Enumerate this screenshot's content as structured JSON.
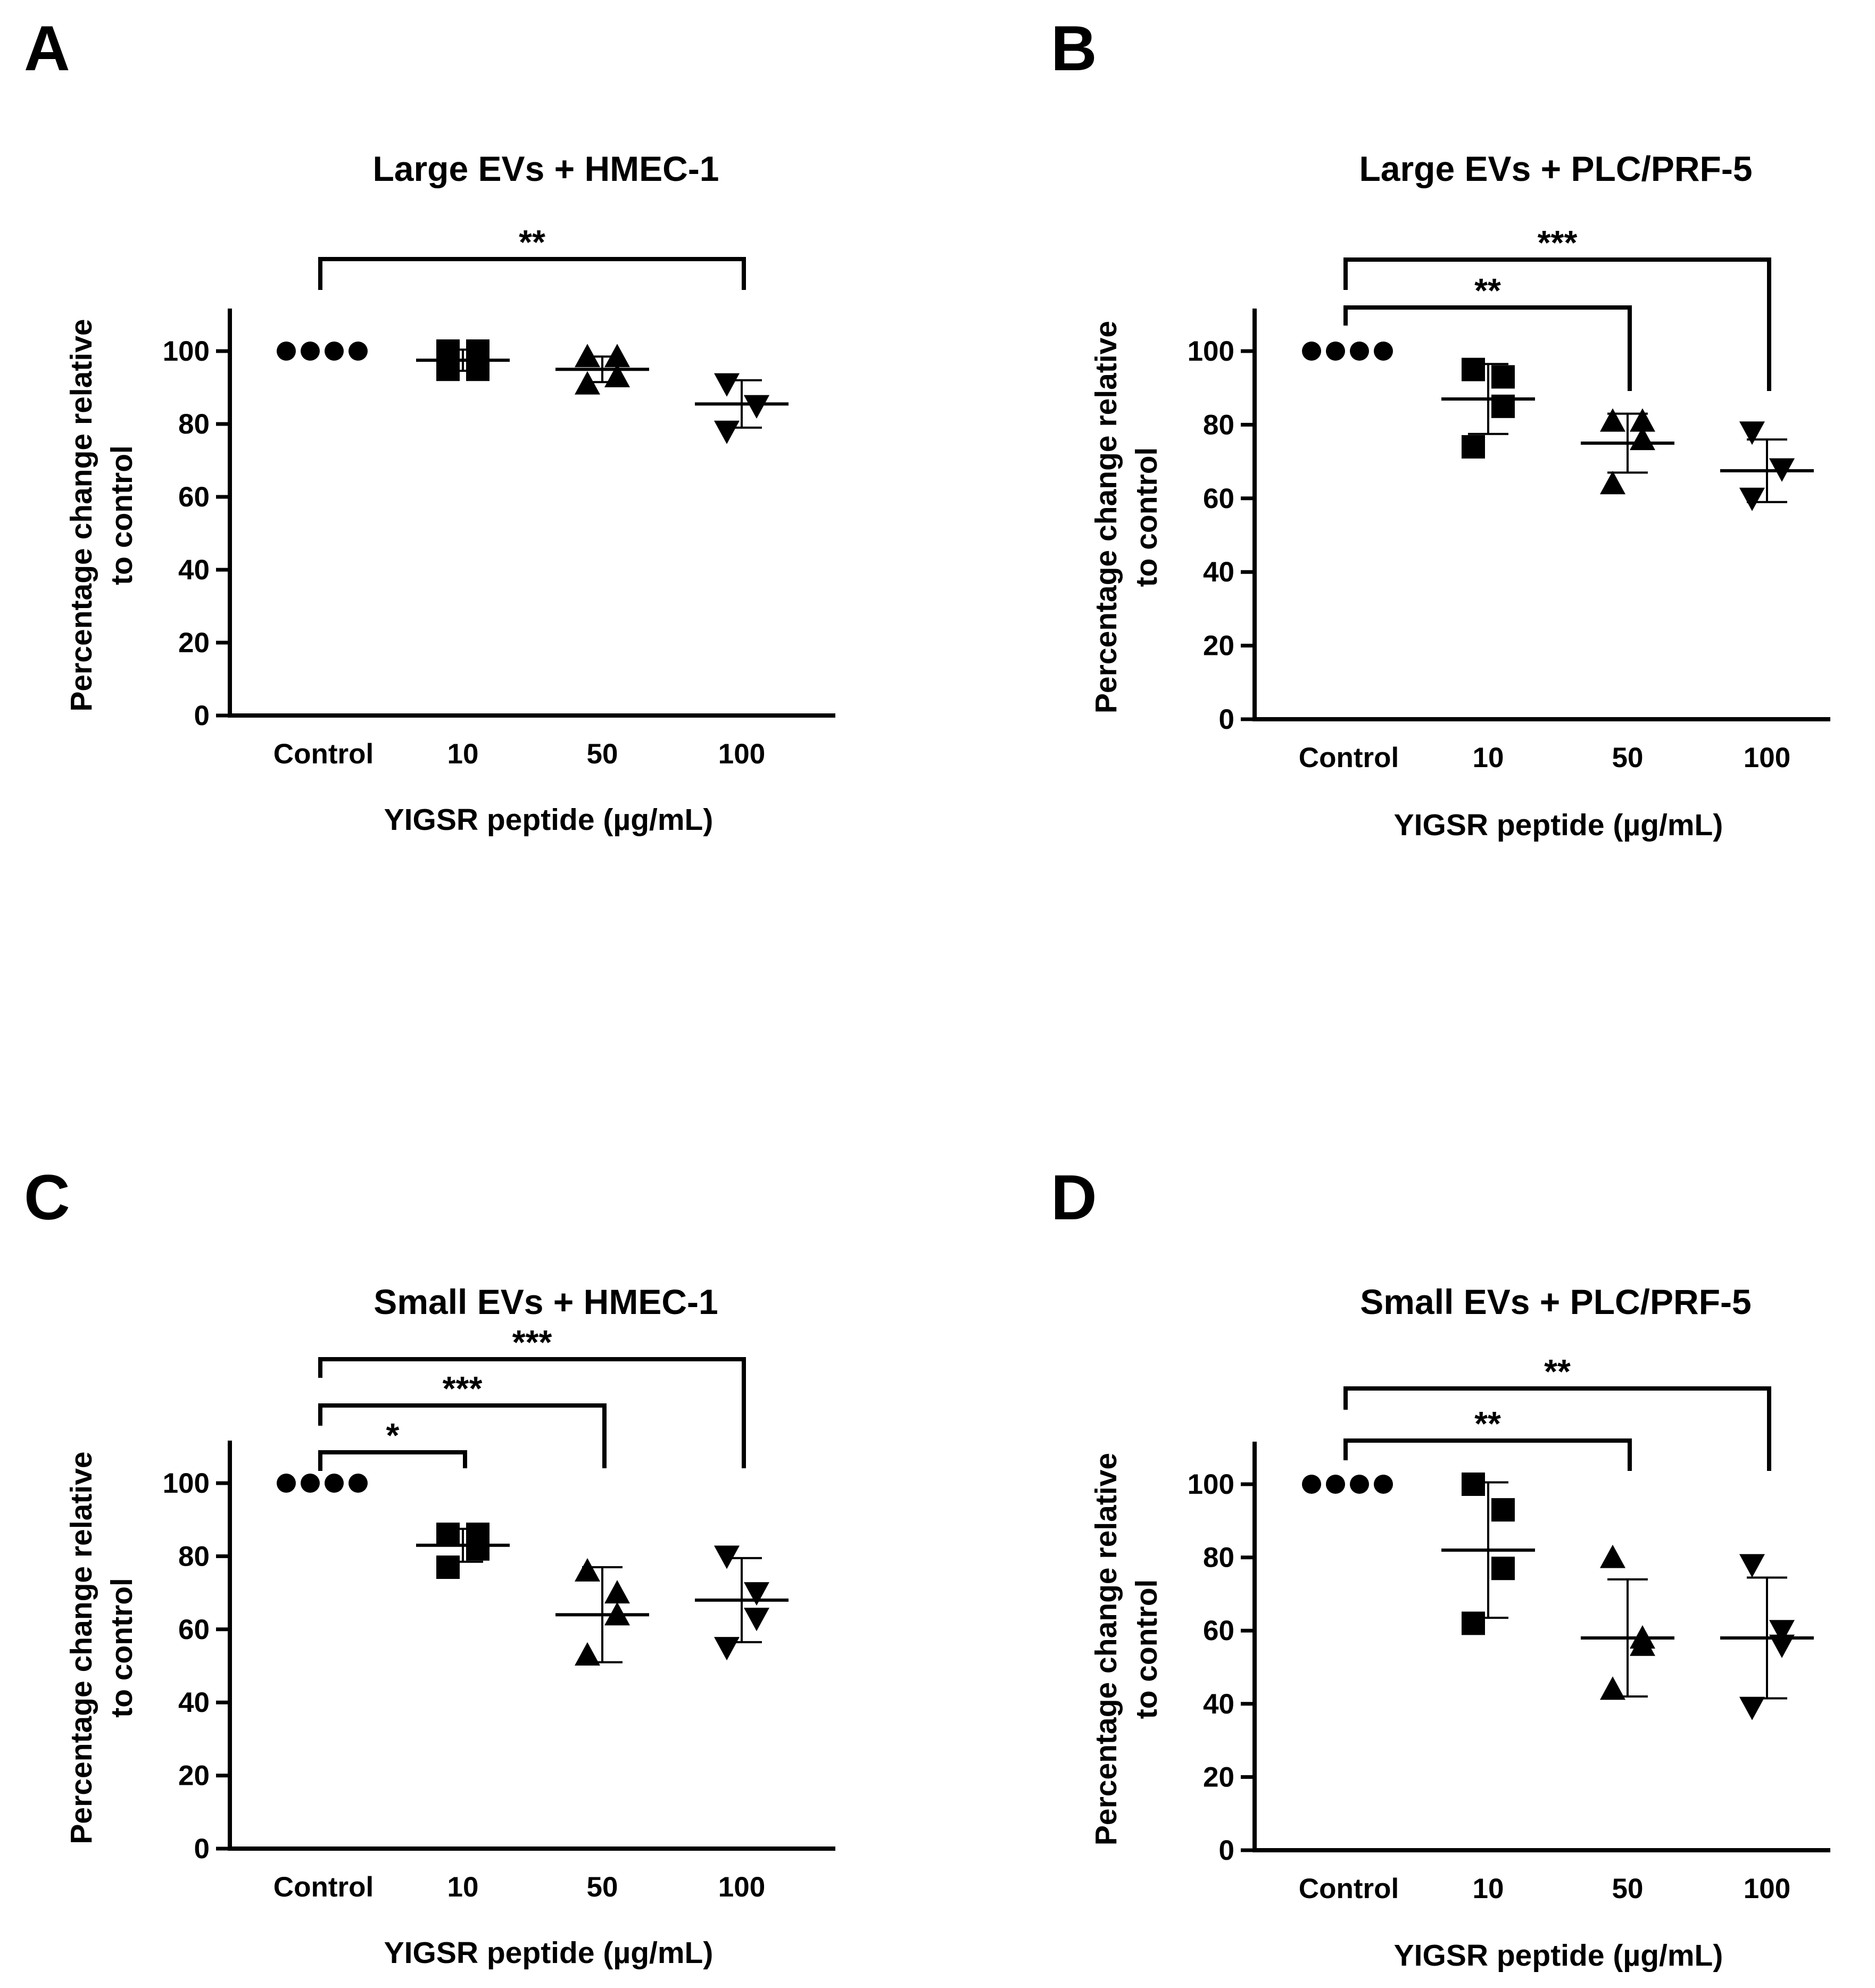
{
  "figure": {
    "panel_letters": [
      "A",
      "B",
      "C",
      "D"
    ]
  },
  "chart_data": [
    {
      "panel": "A",
      "type": "scatter",
      "title": "Large EVs + HMEC-1",
      "xlabel": "YIGSR peptide (µg/mL)",
      "ylabel_lines": [
        "Percentage change relative",
        "to control"
      ],
      "categories": [
        "Control",
        "10",
        "50",
        "100"
      ],
      "ylim": [
        0,
        110
      ],
      "yticks": [
        0,
        20,
        40,
        60,
        80,
        100
      ],
      "markers": [
        "circle",
        "square",
        "triangle-up",
        "triangle-down"
      ],
      "groups": [
        {
          "name": "Control",
          "points": [
            100,
            100,
            100,
            100
          ],
          "mean": 100,
          "sd": 0
        },
        {
          "name": "10",
          "points": [
            100,
            100,
            95,
            95
          ],
          "mean": 97.5,
          "sd": 2.9
        },
        {
          "name": "50",
          "points": [
            98.5,
            98.5,
            93,
            91
          ],
          "mean": 95,
          "sd": 3.5
        },
        {
          "name": "100",
          "points": [
            91,
            85,
            85,
            78
          ],
          "mean": 85.5,
          "sd": 6.5
        }
      ],
      "comparisons": [
        {
          "from": "Control",
          "to": "100",
          "label": "**"
        }
      ]
    },
    {
      "panel": "B",
      "type": "scatter",
      "title": "Large EVs + PLC/PRF-5",
      "xlabel": "YIGSR peptide (µg/mL)",
      "ylabel_lines": [
        "Percentage change relative",
        "to control"
      ],
      "categories": [
        "Control",
        "10",
        "50",
        "100"
      ],
      "ylim": [
        0,
        110
      ],
      "yticks": [
        0,
        20,
        40,
        60,
        80,
        100
      ],
      "markers": [
        "circle",
        "square",
        "triangle-up",
        "triangle-down"
      ],
      "groups": [
        {
          "name": "Control",
          "points": [
            100,
            100,
            100,
            100
          ],
          "mean": 100,
          "sd": 0
        },
        {
          "name": "10",
          "points": [
            95,
            93,
            85,
            74
          ],
          "mean": 87,
          "sd": 9.5
        },
        {
          "name": "50",
          "points": [
            81,
            81,
            76,
            64
          ],
          "mean": 75,
          "sd": 8
        },
        {
          "name": "100",
          "points": [
            78,
            68,
            68,
            60
          ],
          "mean": 67.5,
          "sd": 8.5
        }
      ],
      "comparisons": [
        {
          "from": "Control",
          "to": "50",
          "label": "**"
        },
        {
          "from": "Control",
          "to": "100",
          "label": "***"
        }
      ]
    },
    {
      "panel": "C",
      "type": "scatter",
      "title": "Small EVs + HMEC-1",
      "xlabel": "YIGSR peptide (µg/mL)",
      "ylabel_lines": [
        "Percentage change relative",
        "to control"
      ],
      "categories": [
        "Control",
        "10",
        "50",
        "100"
      ],
      "ylim": [
        0,
        110
      ],
      "yticks": [
        0,
        20,
        40,
        60,
        80,
        100
      ],
      "markers": [
        "circle",
        "square",
        "triangle-up",
        "triangle-down"
      ],
      "groups": [
        {
          "name": "Control",
          "points": [
            100,
            100,
            100,
            100
          ],
          "mean": 100,
          "sd": 0
        },
        {
          "name": "10",
          "points": [
            86,
            86,
            82,
            77
          ],
          "mean": 83,
          "sd": 4.5
        },
        {
          "name": "50",
          "points": [
            76,
            70,
            64,
            53
          ],
          "mean": 64,
          "sd": 13
        },
        {
          "name": "100",
          "points": [
            80,
            70,
            63,
            55
          ],
          "mean": 68,
          "sd": 11.5
        }
      ],
      "comparisons": [
        {
          "from": "Control",
          "to": "10",
          "label": "*"
        },
        {
          "from": "Control",
          "to": "50",
          "label": "***"
        },
        {
          "from": "Control",
          "to": "100",
          "label": "***"
        }
      ]
    },
    {
      "panel": "D",
      "type": "scatter",
      "title": "Small EVs + PLC/PRF-5",
      "xlabel": "YIGSR peptide (µg/mL)",
      "ylabel_lines": [
        "Percentage change relative",
        "to control"
      ],
      "categories": [
        "Control",
        "10",
        "50",
        "100"
      ],
      "ylim": [
        0,
        110
      ],
      "yticks": [
        0,
        20,
        40,
        60,
        80,
        100
      ],
      "markers": [
        "circle",
        "square",
        "triangle-up",
        "triangle-down"
      ],
      "groups": [
        {
          "name": "Control",
          "points": [
            100,
            100,
            100,
            100
          ],
          "mean": 100,
          "sd": 0
        },
        {
          "name": "10",
          "points": [
            100,
            93,
            77,
            62
          ],
          "mean": 82,
          "sd": 18.5
        },
        {
          "name": "50",
          "points": [
            80,
            58,
            56,
            44
          ],
          "mean": 58,
          "sd": 16
        },
        {
          "name": "100",
          "points": [
            78,
            60,
            56,
            39
          ],
          "mean": 58,
          "sd": 16.5
        }
      ],
      "comparisons": [
        {
          "from": "Control",
          "to": "50",
          "label": "**"
        },
        {
          "from": "Control",
          "to": "100",
          "label": "**"
        }
      ]
    }
  ]
}
